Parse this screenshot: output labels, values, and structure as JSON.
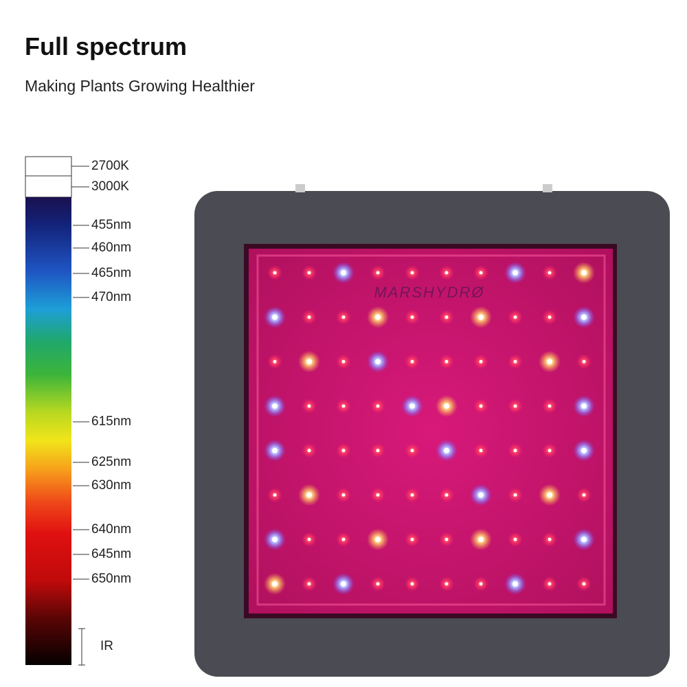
{
  "header": {
    "title": "Full spectrum",
    "subtitle": "Making Plants Growing Healthier"
  },
  "spectrum": {
    "labels": [
      "2700K",
      "3000K",
      "455nm",
      "460nm",
      "465nm",
      "470nm",
      "615nm",
      "625nm",
      "630nm",
      "640nm",
      "645nm",
      "650nm",
      "IR"
    ]
  },
  "product": {
    "brand": "MARSHYDRØ"
  }
}
